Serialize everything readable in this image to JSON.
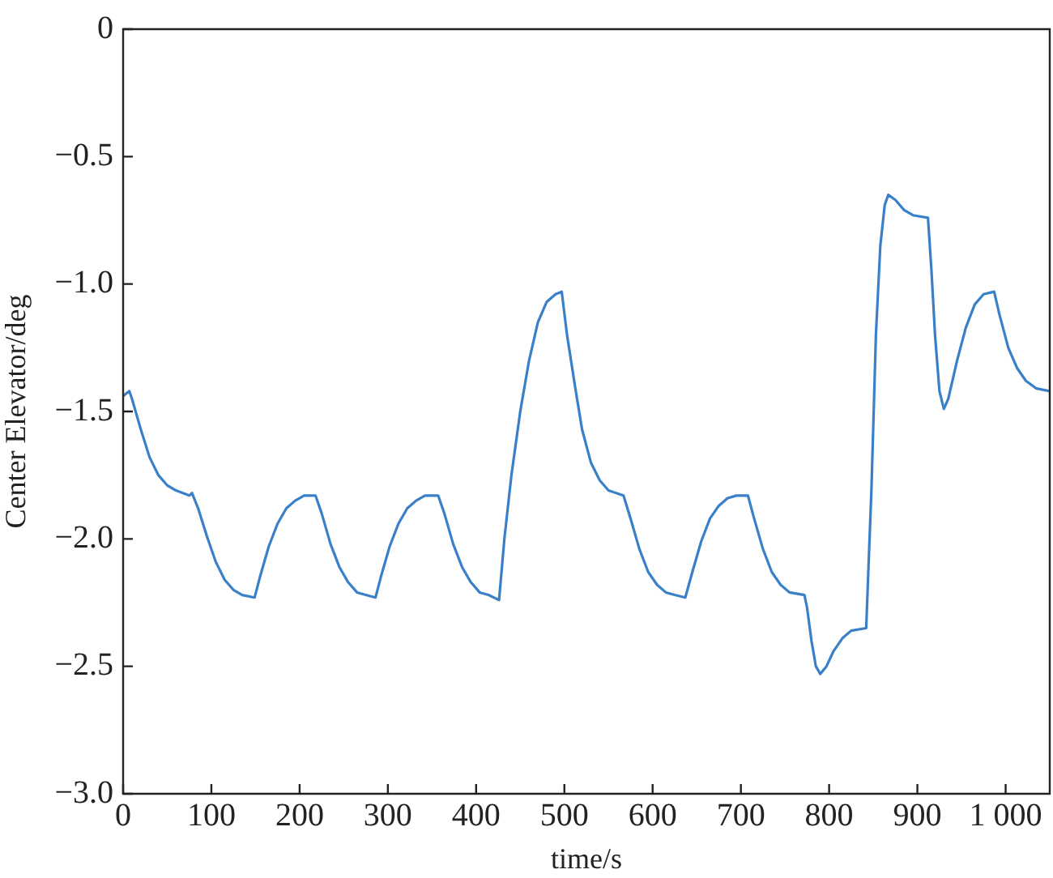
{
  "chart_data": {
    "type": "line",
    "xlabel": "time/s",
    "ylabel": "Center Elevator/deg",
    "xlim": [
      0,
      1050
    ],
    "ylim": [
      -3.0,
      0
    ],
    "xticks": [
      0,
      100,
      200,
      300,
      400,
      500,
      600,
      700,
      800,
      900,
      {
        "value": 1000,
        "label": "1 000"
      }
    ],
    "yticks": [
      {
        "value": -3.0,
        "label": "−3.0"
      },
      {
        "value": -2.5,
        "label": "−2.5"
      },
      {
        "value": -2.0,
        "label": "−2.0"
      },
      {
        "value": -1.5,
        "label": "−1.5"
      },
      {
        "value": -1.0,
        "label": "−1.0"
      },
      {
        "value": -0.5,
        "label": "−0.5"
      },
      0
    ],
    "legend": false,
    "marker": "none",
    "line_style": "solid",
    "series": [
      {
        "color": "#3a80c9",
        "x": [
          0,
          7,
          10,
          20,
          30,
          40,
          50,
          60,
          75,
          78,
          85,
          95,
          105,
          115,
          125,
          135,
          149,
          155,
          165,
          175,
          185,
          195,
          205,
          218,
          225,
          235,
          245,
          255,
          265,
          275,
          286,
          292,
          302,
          312,
          322,
          332,
          342,
          357,
          364,
          374,
          384,
          394,
          404,
          414,
          426,
          432,
          440,
          450,
          460,
          470,
          480,
          490,
          497,
          503,
          512,
          520,
          530,
          540,
          550,
          567,
          575,
          585,
          595,
          605,
          615,
          625,
          637,
          645,
          655,
          665,
          675,
          685,
          695,
          708,
          715,
          725,
          735,
          745,
          755,
          772,
          775,
          780,
          785,
          790,
          797,
          805,
          815,
          825,
          842,
          848,
          853,
          858,
          863,
          867,
          875,
          885,
          895,
          912,
          916,
          920,
          925,
          930,
          935,
          945,
          955,
          965,
          975,
          987,
          993,
          1003,
          1013,
          1023,
          1035,
          1050
        ],
        "values": [
          -1.44,
          -1.42,
          -1.45,
          -1.57,
          -1.68,
          -1.75,
          -1.79,
          -1.81,
          -1.83,
          -1.82,
          -1.88,
          -1.99,
          -2.09,
          -2.16,
          -2.2,
          -2.22,
          -2.23,
          -2.15,
          -2.03,
          -1.94,
          -1.88,
          -1.85,
          -1.83,
          -1.83,
          -1.9,
          -2.02,
          -2.11,
          -2.17,
          -2.21,
          -2.22,
          -2.23,
          -2.15,
          -2.03,
          -1.94,
          -1.88,
          -1.85,
          -1.83,
          -1.83,
          -1.9,
          -2.02,
          -2.11,
          -2.17,
          -2.21,
          -2.22,
          -2.24,
          -2.0,
          -1.75,
          -1.5,
          -1.3,
          -1.15,
          -1.07,
          -1.04,
          -1.03,
          -1.2,
          -1.4,
          -1.57,
          -1.7,
          -1.77,
          -1.81,
          -1.83,
          -1.92,
          -2.04,
          -2.13,
          -2.18,
          -2.21,
          -2.22,
          -2.23,
          -2.13,
          -2.01,
          -1.92,
          -1.87,
          -1.84,
          -1.83,
          -1.83,
          -1.92,
          -2.04,
          -2.13,
          -2.18,
          -2.21,
          -2.22,
          -2.27,
          -2.4,
          -2.5,
          -2.53,
          -2.5,
          -2.44,
          -2.39,
          -2.36,
          -2.35,
          -1.8,
          -1.2,
          -0.85,
          -0.69,
          -0.65,
          -0.67,
          -0.71,
          -0.73,
          -0.74,
          -0.95,
          -1.2,
          -1.42,
          -1.49,
          -1.45,
          -1.3,
          -1.17,
          -1.08,
          -1.04,
          -1.03,
          -1.12,
          -1.25,
          -1.33,
          -1.38,
          -1.41,
          -1.42
        ]
      }
    ]
  }
}
